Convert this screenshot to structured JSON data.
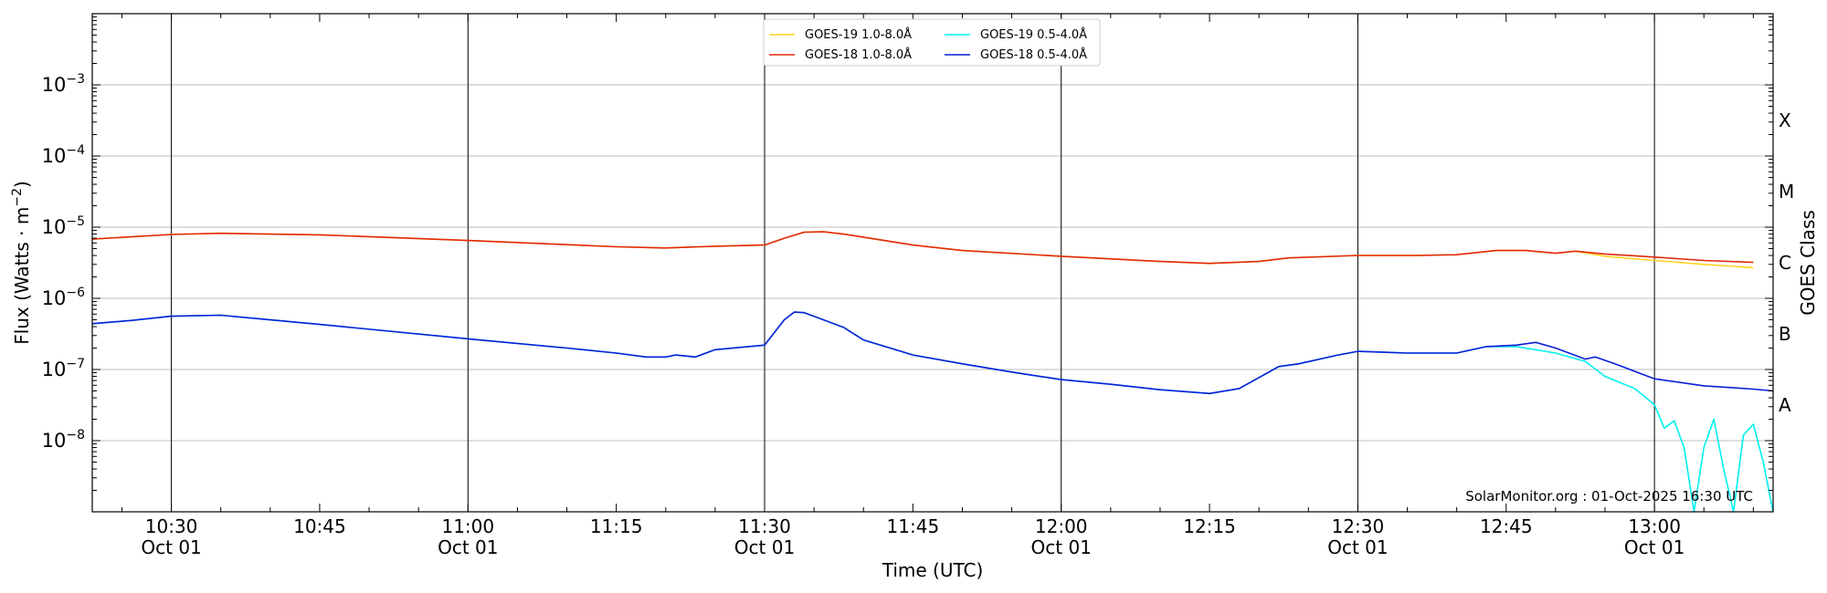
{
  "chart_data": {
    "type": "line",
    "xlabel": "Time (UTC)",
    "ylabel_main": "Flux (Watts · m",
    "ylabel_sup": "−2",
    "ylabel_close": ")",
    "right_axis_label": "GOES Class",
    "annotation": "SolarMonitor.org : 01-Oct-2025 16:30 UTC",
    "xlim": [
      "10:22",
      "13:12"
    ],
    "y_scale": "log",
    "ylim": [
      1e-09,
      0.01
    ],
    "grid_y": true,
    "legend_position": "top-center",
    "x_ticks": [
      {
        "time": "10:30",
        "label": "10:30",
        "date": "Oct 01",
        "major": true
      },
      {
        "time": "10:45",
        "label": "10:45",
        "date": "",
        "major": false
      },
      {
        "time": "11:00",
        "label": "11:00",
        "date": "Oct 01",
        "major": true
      },
      {
        "time": "11:15",
        "label": "11:15",
        "date": "",
        "major": false
      },
      {
        "time": "11:30",
        "label": "11:30",
        "date": "Oct 01",
        "major": true
      },
      {
        "time": "11:45",
        "label": "11:45",
        "date": "",
        "major": false
      },
      {
        "time": "12:00",
        "label": "12:00",
        "date": "Oct 01",
        "major": true
      },
      {
        "time": "12:15",
        "label": "12:15",
        "date": "",
        "major": false
      },
      {
        "time": "12:30",
        "label": "12:30",
        "date": "Oct 01",
        "major": true
      },
      {
        "time": "12:45",
        "label": "12:45",
        "date": "",
        "major": false
      },
      {
        "time": "13:00",
        "label": "13:00",
        "date": "Oct 01",
        "major": true
      }
    ],
    "y_ticks": [
      {
        "exp": -8,
        "base": "10",
        "sup": "−8"
      },
      {
        "exp": -7,
        "base": "10",
        "sup": "−7"
      },
      {
        "exp": -6,
        "base": "10",
        "sup": "−6"
      },
      {
        "exp": -5,
        "base": "10",
        "sup": "−5"
      },
      {
        "exp": -4,
        "base": "10",
        "sup": "−4"
      },
      {
        "exp": -3,
        "base": "10",
        "sup": "−3"
      }
    ],
    "goes_classes": [
      {
        "label": "A",
        "exp": -7.5
      },
      {
        "label": "B",
        "exp": -6.5
      },
      {
        "label": "C",
        "exp": -5.5
      },
      {
        "label": "M",
        "exp": -4.5
      },
      {
        "label": "X",
        "exp": -3.5
      }
    ],
    "series": [
      {
        "name": "GOES-19 1.0-8.0Å",
        "color": "#FFD21F",
        "points": [
          [
            "10:22",
            6.8e-06
          ],
          [
            "10:30",
            7.9e-06
          ],
          [
            "10:35",
            8.2e-06
          ],
          [
            "10:45",
            7.8e-06
          ],
          [
            "11:00",
            6.5e-06
          ],
          [
            "11:15",
            5.3e-06
          ],
          [
            "11:20",
            5.1e-06
          ],
          [
            "11:25",
            5.4e-06
          ],
          [
            "11:30",
            5.6e-06
          ],
          [
            "11:32",
            7e-06
          ],
          [
            "11:34",
            8.5e-06
          ],
          [
            "11:36",
            8.6e-06
          ],
          [
            "11:38",
            8e-06
          ],
          [
            "11:45",
            5.6e-06
          ],
          [
            "11:50",
            4.7e-06
          ],
          [
            "12:00",
            3.9e-06
          ],
          [
            "12:10",
            3.3e-06
          ],
          [
            "12:15",
            3.1e-06
          ],
          [
            "12:20",
            3.3e-06
          ],
          [
            "12:23",
            3.7e-06
          ],
          [
            "12:30",
            4e-06
          ],
          [
            "12:36",
            4e-06
          ],
          [
            "12:40",
            4.1e-06
          ],
          [
            "12:44",
            4.7e-06
          ],
          [
            "12:47",
            4.7e-06
          ],
          [
            "12:50",
            4.3e-06
          ],
          [
            "12:52",
            4.6e-06
          ],
          [
            "12:55",
            3.9e-06
          ],
          [
            "13:00",
            3.4e-06
          ],
          [
            "13:05",
            3e-06
          ],
          [
            "13:10",
            2.7e-06
          ]
        ]
      },
      {
        "name": "GOES-18 1.0-8.0Å",
        "color": "#E02A0B",
        "points": [
          [
            "10:22",
            6.8e-06
          ],
          [
            "10:30",
            7.9e-06
          ],
          [
            "10:35",
            8.2e-06
          ],
          [
            "10:45",
            7.8e-06
          ],
          [
            "11:00",
            6.5e-06
          ],
          [
            "11:15",
            5.3e-06
          ],
          [
            "11:20",
            5.1e-06
          ],
          [
            "11:25",
            5.4e-06
          ],
          [
            "11:30",
            5.6e-06
          ],
          [
            "11:32",
            7e-06
          ],
          [
            "11:34",
            8.5e-06
          ],
          [
            "11:36",
            8.6e-06
          ],
          [
            "11:38",
            8e-06
          ],
          [
            "11:45",
            5.6e-06
          ],
          [
            "11:50",
            4.7e-06
          ],
          [
            "12:00",
            3.9e-06
          ],
          [
            "12:10",
            3.3e-06
          ],
          [
            "12:15",
            3.1e-06
          ],
          [
            "12:20",
            3.3e-06
          ],
          [
            "12:23",
            3.7e-06
          ],
          [
            "12:30",
            4e-06
          ],
          [
            "12:36",
            4e-06
          ],
          [
            "12:40",
            4.1e-06
          ],
          [
            "12:44",
            4.7e-06
          ],
          [
            "12:47",
            4.7e-06
          ],
          [
            "12:50",
            4.3e-06
          ],
          [
            "12:52",
            4.6e-06
          ],
          [
            "12:55",
            4.2e-06
          ],
          [
            "13:00",
            3.8e-06
          ],
          [
            "13:05",
            3.4e-06
          ],
          [
            "13:10",
            3.2e-06
          ]
        ]
      },
      {
        "name": "GOES-19 0.5-4.0Å",
        "color": "#00F0F0",
        "points": [
          [
            "10:22",
            4.4e-07
          ],
          [
            "10:26",
            4.9e-07
          ],
          [
            "10:30",
            5.6e-07
          ],
          [
            "10:35",
            5.8e-07
          ],
          [
            "10:45",
            4.3e-07
          ],
          [
            "11:00",
            2.7e-07
          ],
          [
            "11:10",
            2e-07
          ],
          [
            "11:15",
            1.7e-07
          ],
          [
            "11:18",
            1.5e-07
          ],
          [
            "11:20",
            1.5e-07
          ],
          [
            "11:21",
            1.6e-07
          ],
          [
            "11:23",
            1.5e-07
          ],
          [
            "11:25",
            1.9e-07
          ],
          [
            "11:30",
            2.2e-07
          ],
          [
            "11:32",
            5e-07
          ],
          [
            "11:33",
            6.4e-07
          ],
          [
            "11:34",
            6.3e-07
          ],
          [
            "11:38",
            3.9e-07
          ],
          [
            "11:40",
            2.6e-07
          ],
          [
            "11:45",
            1.6e-07
          ],
          [
            "11:50",
            1.2e-07
          ],
          [
            "11:55",
            9.2e-08
          ],
          [
            "12:00",
            7.2e-08
          ],
          [
            "12:05",
            6.2e-08
          ],
          [
            "12:10",
            5.2e-08
          ],
          [
            "12:15",
            4.6e-08
          ],
          [
            "12:18",
            5.4e-08
          ],
          [
            "12:22",
            1.1e-07
          ],
          [
            "12:24",
            1.2e-07
          ],
          [
            "12:28",
            1.6e-07
          ],
          [
            "12:30",
            1.8e-07
          ],
          [
            "12:35",
            1.7e-07
          ],
          [
            "12:40",
            1.7e-07
          ],
          [
            "12:43",
            2.1e-07
          ],
          [
            "12:46",
            2.1e-07
          ],
          [
            "12:50",
            1.7e-07
          ],
          [
            "12:53",
            1.3e-07
          ],
          [
            "12:55",
            8e-08
          ],
          [
            "12:58",
            5.4e-08
          ],
          [
            "13:00",
            3.2e-08
          ],
          [
            "13:01",
            1.5e-08
          ],
          [
            "13:02",
            1.9e-08
          ],
          [
            "13:03",
            8e-09
          ],
          [
            "13:04",
            1e-09
          ],
          [
            "13:05",
            8e-09
          ],
          [
            "13:06",
            2e-08
          ],
          [
            "13:07",
            4e-09
          ],
          [
            "13:08",
            1e-09
          ],
          [
            "13:09",
            1.2e-08
          ],
          [
            "13:10",
            1.7e-08
          ],
          [
            "13:11",
            5e-09
          ],
          [
            "13:12",
            1e-09
          ]
        ]
      },
      {
        "name": "GOES-18 0.5-4.0Å",
        "color": "#0A1FD6",
        "points": [
          [
            "10:22",
            4.4e-07
          ],
          [
            "10:26",
            4.9e-07
          ],
          [
            "10:30",
            5.6e-07
          ],
          [
            "10:35",
            5.8e-07
          ],
          [
            "10:45",
            4.3e-07
          ],
          [
            "11:00",
            2.7e-07
          ],
          [
            "11:10",
            2e-07
          ],
          [
            "11:15",
            1.7e-07
          ],
          [
            "11:18",
            1.5e-07
          ],
          [
            "11:20",
            1.5e-07
          ],
          [
            "11:21",
            1.6e-07
          ],
          [
            "11:23",
            1.5e-07
          ],
          [
            "11:25",
            1.9e-07
          ],
          [
            "11:30",
            2.2e-07
          ],
          [
            "11:32",
            5e-07
          ],
          [
            "11:33",
            6.4e-07
          ],
          [
            "11:34",
            6.3e-07
          ],
          [
            "11:38",
            3.9e-07
          ],
          [
            "11:40",
            2.6e-07
          ],
          [
            "11:45",
            1.6e-07
          ],
          [
            "11:50",
            1.2e-07
          ],
          [
            "11:55",
            9.2e-08
          ],
          [
            "12:00",
            7.2e-08
          ],
          [
            "12:05",
            6.2e-08
          ],
          [
            "12:10",
            5.2e-08
          ],
          [
            "12:15",
            4.6e-08
          ],
          [
            "12:18",
            5.4e-08
          ],
          [
            "12:22",
            1.1e-07
          ],
          [
            "12:24",
            1.2e-07
          ],
          [
            "12:28",
            1.6e-07
          ],
          [
            "12:30",
            1.8e-07
          ],
          [
            "12:35",
            1.7e-07
          ],
          [
            "12:40",
            1.7e-07
          ],
          [
            "12:43",
            2.1e-07
          ],
          [
            "12:46",
            2.2e-07
          ],
          [
            "12:48",
            2.4e-07
          ],
          [
            "12:50",
            2e-07
          ],
          [
            "12:53",
            1.4e-07
          ],
          [
            "12:54",
            1.5e-07
          ],
          [
            "12:56",
            1.2e-07
          ],
          [
            "13:00",
            7.4e-08
          ],
          [
            "13:05",
            5.9e-08
          ],
          [
            "13:10",
            5.3e-08
          ],
          [
            "13:12",
            5e-08
          ]
        ]
      }
    ]
  }
}
